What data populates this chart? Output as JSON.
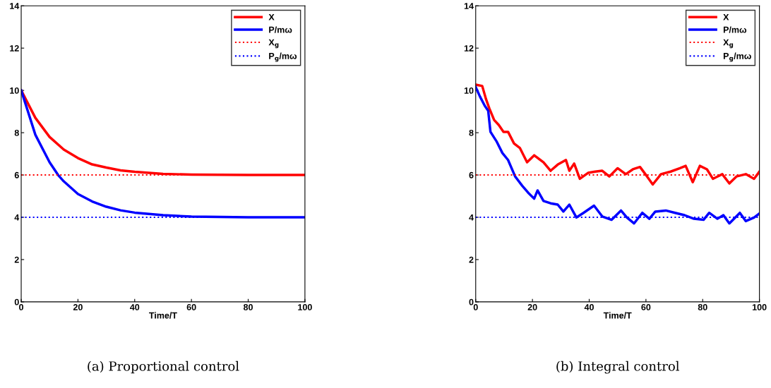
{
  "chart_data": [
    {
      "type": "line",
      "title": "(a) Proportional control",
      "xlabel": "Time/T",
      "xlim": [
        0,
        100
      ],
      "xticks": [
        0,
        20,
        40,
        60,
        80,
        100
      ],
      "ylim": [
        0,
        14
      ],
      "yticks": [
        0,
        2,
        4,
        6,
        8,
        10,
        12,
        14
      ],
      "legend": "top right",
      "grid": false,
      "marker": "none",
      "series": [
        {
          "name": "X",
          "color": "#ff0000",
          "line_style": "solid",
          "x": [
            0,
            5,
            10,
            15,
            20,
            25,
            30,
            35,
            40,
            50,
            60,
            80,
            100
          ],
          "values": [
            10,
            8.7,
            7.8,
            7.2,
            6.8,
            6.5,
            6.35,
            6.22,
            6.15,
            6.05,
            6.02,
            6.0,
            6.0
          ]
        },
        {
          "name": "P/mω",
          "color": "#0000ff",
          "line_style": "solid",
          "x": [
            0,
            5,
            10,
            13,
            15,
            20,
            25,
            30,
            35,
            40,
            50,
            60,
            80,
            100
          ],
          "values": [
            10,
            7.9,
            6.6,
            6.0,
            5.7,
            5.1,
            4.75,
            4.5,
            4.33,
            4.22,
            4.1,
            4.03,
            4.0,
            4.0
          ]
        },
        {
          "name": "X$_{g}$",
          "color": "#ff0000",
          "line_style": "dotted",
          "x": [
            0,
            100
          ],
          "values": [
            6,
            6
          ]
        },
        {
          "name": "P$_{g}$/mω",
          "color": "#0000ff",
          "line_style": "dotted",
          "x": [
            0,
            100
          ],
          "values": [
            4,
            4
          ]
        }
      ]
    },
    {
      "type": "line",
      "title": "(b) Integral control",
      "xlabel": "Time/T",
      "xlim": [
        0,
        100
      ],
      "xticks": [
        0,
        20,
        40,
        60,
        80,
        100
      ],
      "ylim": [
        0,
        14
      ],
      "yticks": [
        0,
        2,
        4,
        6,
        8,
        10,
        12,
        14
      ],
      "legend": "top right",
      "grid": false,
      "marker": "none",
      "series": [
        {
          "name": "X",
          "color": "#ff0000",
          "line_style": "solid",
          "x": [
            0,
            2.3,
            3.6,
            4.8,
            6.5,
            8.1,
            9.8,
            11.4,
            13.5,
            15.6,
            18.1,
            20.6,
            23.9,
            26.4,
            28.9,
            31.8,
            33.0,
            34.7,
            36.7,
            39.6,
            42.1,
            44.6,
            47.1,
            50.0,
            52.9,
            55.4,
            57.9,
            60.4,
            62.4,
            65.3,
            68.7,
            72.0,
            74.0,
            76.5,
            79.0,
            81.5,
            83.6,
            86.9,
            89.4,
            91.9,
            95.2,
            98.1,
            100
          ],
          "values": [
            10.27,
            10.21,
            9.6,
            9.15,
            8.6,
            8.37,
            8.04,
            8.04,
            7.49,
            7.27,
            6.6,
            6.93,
            6.6,
            6.2,
            6.49,
            6.71,
            6.2,
            6.54,
            5.82,
            6.1,
            6.16,
            6.2,
            5.93,
            6.32,
            6.04,
            6.27,
            6.38,
            5.93,
            5.55,
            6.04,
            6.16,
            6.32,
            6.43,
            5.66,
            6.43,
            6.27,
            5.82,
            6.04,
            5.6,
            5.93,
            6.04,
            5.82,
            6.16
          ]
        },
        {
          "name": "P/mω",
          "color": "#0000ff",
          "line_style": "solid",
          "x": [
            0,
            1.5,
            3.2,
            4.4,
            5.2,
            7.3,
            9.4,
            11.4,
            13.9,
            16.4,
            18.5,
            20.6,
            21.8,
            23.9,
            26.4,
            28.9,
            30.9,
            33.0,
            35.5,
            38.0,
            41.7,
            44.6,
            47.9,
            51.2,
            53.3,
            55.8,
            58.7,
            61.2,
            63.3,
            67.0,
            70.3,
            73.6,
            76.9,
            80.3,
            82.3,
            85.2,
            87.3,
            89.4,
            93.1,
            95.2,
            98.1,
            99.8
          ],
          "values": [
            10.16,
            9.71,
            9.27,
            9.04,
            8.04,
            7.6,
            7.04,
            6.71,
            5.93,
            5.49,
            5.16,
            4.88,
            5.27,
            4.77,
            4.66,
            4.6,
            4.27,
            4.6,
            3.99,
            4.21,
            4.55,
            4.04,
            3.88,
            4.32,
            3.99,
            3.71,
            4.21,
            3.93,
            4.27,
            4.32,
            4.21,
            4.1,
            3.93,
            3.88,
            4.21,
            3.93,
            4.1,
            3.71,
            4.21,
            3.82,
            3.99,
            4.16
          ]
        },
        {
          "name": "X$_{g}$",
          "color": "#ff0000",
          "line_style": "dotted",
          "x": [
            0,
            100
          ],
          "values": [
            6,
            6
          ]
        },
        {
          "name": "P$_{g}$/mω",
          "color": "#0000ff",
          "line_style": "dotted",
          "x": [
            0,
            100
          ],
          "values": [
            4,
            4
          ]
        }
      ]
    }
  ]
}
